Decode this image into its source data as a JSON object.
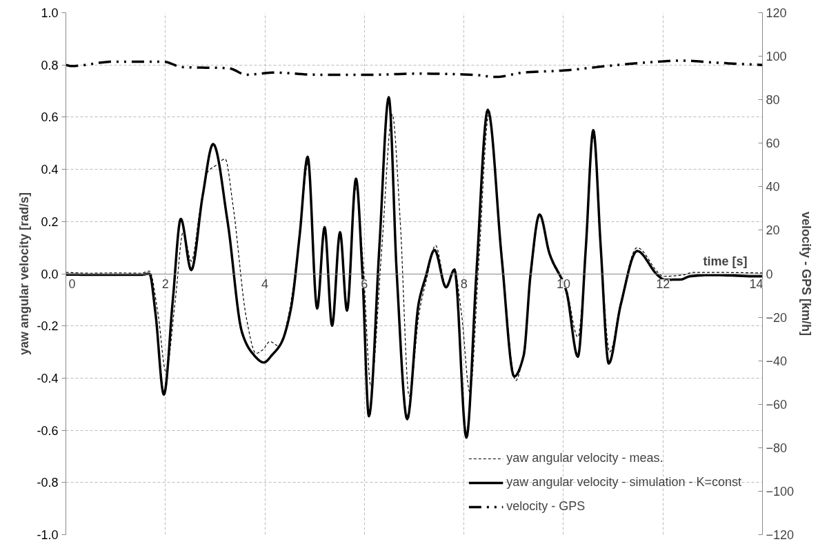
{
  "chart_data": {
    "type": "line",
    "xlabel": "time [s]",
    "ylabel": "yaw angular velocity [rad/s]",
    "y2label": "velocity - GPS [km/h]",
    "xlim": [
      0,
      14
    ],
    "xticks": [
      0,
      2,
      4,
      6,
      8,
      10,
      12,
      14
    ],
    "ylim": [
      -1,
      1
    ],
    "yticks": [
      {
        "value": -1,
        "label": "-1.0"
      },
      {
        "value": -0.8,
        "label": "-0.8"
      },
      {
        "value": -0.6,
        "label": "-0.6"
      },
      {
        "value": -0.4,
        "label": "-0.4"
      },
      {
        "value": -0.2,
        "label": "-0.2"
      },
      {
        "value": 0,
        "label": "0.0"
      },
      {
        "value": 0.2,
        "label": "0.2"
      },
      {
        "value": 0.4,
        "label": "0.4"
      },
      {
        "value": 0.6,
        "label": "0.6"
      },
      {
        "value": 0.8,
        "label": "0.8"
      },
      {
        "value": 1,
        "label": "1.0"
      }
    ],
    "y2lim": [
      -120,
      120
    ],
    "y2ticks": [
      -120,
      -100,
      -80,
      -60,
      -40,
      -20,
      0,
      20,
      40,
      60,
      80,
      100,
      120
    ],
    "grid": true,
    "legend": "bottom right",
    "series": [
      {
        "name": "yaw angular velocity - meas.",
        "color": "#000000",
        "line_style": "dashed",
        "x": [
          0,
          0.5,
          1,
          1.5,
          1.68,
          1.85,
          2.01,
          2.2,
          2.36,
          2.52,
          2.7,
          2.85,
          3.03,
          3.2,
          3.36,
          3.63,
          3.82,
          3.96,
          4.1,
          4.29,
          4.47,
          4.7,
          4.87,
          5.05,
          5.2,
          5.35,
          5.5,
          5.65,
          5.83,
          5.97,
          6.13,
          6.35,
          6.56,
          6.72,
          6.9,
          7.1,
          7.25,
          7.43,
          7.64,
          7.81,
          7.95,
          8.12,
          8.3,
          8.5,
          8.75,
          9.04,
          9.2,
          9.35,
          9.53,
          9.74,
          10.06,
          10.29,
          10.45,
          10.6,
          10.75,
          10.93,
          11.15,
          11.48,
          11.9,
          12.0,
          12.4,
          12.6,
          13,
          14
        ],
        "values": [
          0.005,
          0.002,
          0.003,
          0.002,
          0.01,
          -0.15,
          -0.375,
          -0.1,
          0.162,
          0.048,
          0.25,
          0.39,
          0.417,
          0.44,
          0.26,
          -0.172,
          -0.305,
          -0.291,
          -0.26,
          -0.278,
          -0.164,
          0.15,
          0.43,
          -0.12,
          0.16,
          -0.18,
          0.15,
          -0.12,
          0.33,
          0.05,
          -0.432,
          0.1,
          0.61,
          0.2,
          -0.469,
          -0.15,
          -0.02,
          0.109,
          -0.045,
          0.01,
          -0.15,
          -0.455,
          0.05,
          0.61,
          0.1,
          -0.41,
          -0.3,
          0.0,
          0.225,
          0.06,
          -0.06,
          -0.243,
          0.1,
          0.523,
          0.1,
          -0.3,
          -0.11,
          0.1,
          0.005,
          -0.01,
          -0.005,
          0.005,
          0.005,
          0.003
        ]
      },
      {
        "name": "yaw angular velocity - simulation - K=const",
        "color": "#000000",
        "line_style": "solid",
        "x": [
          0,
          0.5,
          1,
          1.5,
          1.68,
          1.8,
          1.97,
          2.15,
          2.31,
          2.52,
          2.75,
          2.96,
          3.25,
          3.54,
          3.73,
          3.98,
          4.15,
          4.33,
          4.52,
          4.7,
          4.86,
          5.05,
          5.2,
          5.35,
          5.51,
          5.65,
          5.83,
          5.96,
          6.09,
          6.3,
          6.49,
          6.65,
          6.86,
          7.09,
          7.23,
          7.41,
          7.64,
          7.81,
          8.05,
          8.25,
          8.48,
          8.76,
          9.01,
          9.2,
          9.34,
          9.52,
          9.72,
          10.06,
          10.29,
          10.45,
          10.6,
          10.75,
          10.91,
          11.15,
          11.48,
          11.89,
          12.03,
          12.36,
          12.54,
          13.0,
          13.89,
          14
        ],
        "values": [
          -0.003,
          -0.004,
          -0.004,
          -0.004,
          0.0,
          -0.15,
          -0.463,
          -0.1,
          0.21,
          0.014,
          0.3,
          0.497,
          0.2,
          -0.225,
          -0.3,
          -0.34,
          -0.31,
          -0.265,
          -0.137,
          0.15,
          0.448,
          -0.133,
          0.178,
          -0.199,
          0.159,
          -0.141,
          0.364,
          0.0,
          -0.546,
          0.1,
          0.676,
          0.0,
          -0.557,
          -0.114,
          -0.013,
          0.091,
          -0.052,
          0.016,
          -0.628,
          0.0,
          0.628,
          0.059,
          -0.394,
          -0.314,
          0.0,
          0.227,
          0.077,
          -0.068,
          -0.318,
          0.1,
          0.55,
          0.1,
          -0.344,
          -0.12,
          0.087,
          -0.005,
          -0.023,
          -0.022,
          -0.01,
          -0.005,
          -0.01,
          -0.01
        ]
      },
      {
        "name": "velocity - GPS",
        "color": "#000000",
        "line_style": "dashdot",
        "axis": "y2",
        "x": [
          0,
          0.11,
          0.95,
          1.96,
          2.34,
          3.27,
          3.63,
          4.19,
          5.03,
          6.14,
          7.07,
          8.18,
          8.64,
          9.2,
          10.03,
          10.87,
          11.9,
          12.36,
          13.1,
          14
        ],
        "values": [
          96,
          95.5,
          97.5,
          97.5,
          95,
          94.5,
          91.5,
          92.5,
          91.5,
          91.5,
          92,
          91.5,
          90.5,
          92.5,
          93.5,
          95.5,
          97.5,
          98,
          97,
          96
        ]
      }
    ]
  }
}
